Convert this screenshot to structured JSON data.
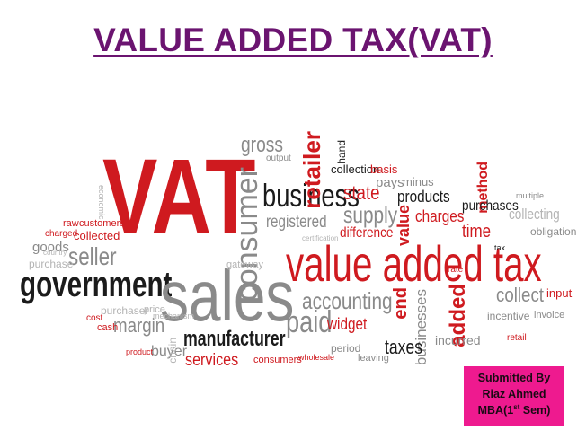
{
  "slide": {
    "title": "VALUE ADDED TAX(VAT)",
    "submitted": {
      "line1": "Submitted By",
      "line2": "Riaz Ahmed",
      "line3_prefix": "MBA(1",
      "line3_sup": "st",
      "line3_suffix": " Sem)"
    }
  },
  "word_cloud": {
    "words": [
      "VAT",
      "value added tax",
      "government",
      "sales",
      "business",
      "consumer",
      "retailer",
      "gross",
      "collection",
      "basis",
      "pays",
      "minus",
      "state",
      "products",
      "method",
      "supply",
      "registered",
      "value",
      "charges",
      "purchases",
      "collecting",
      "time",
      "obligation",
      "difference",
      "accounting",
      "collect",
      "input",
      "end",
      "businesses",
      "added",
      "paid",
      "widget",
      "manufacturer",
      "services",
      "taxes",
      "incurred",
      "seller",
      "goods",
      "margin",
      "buyer",
      "purchaser",
      "purchase",
      "collected",
      "customers",
      "consumers",
      "incentive",
      "invoice",
      "raw",
      "cash",
      "cost",
      "price",
      "charged",
      "period",
      "leaving",
      "mechanism",
      "chain",
      "gateway",
      "economic",
      "retail",
      "certification",
      "wholesale",
      "multiple",
      "rate",
      "tax",
      "country",
      "product",
      "hand",
      "output"
    ]
  }
}
